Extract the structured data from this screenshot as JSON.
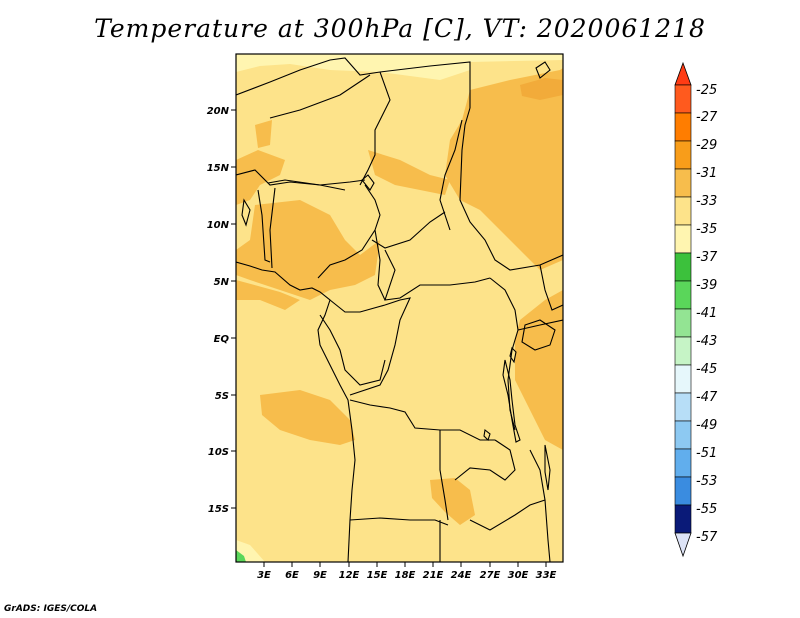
{
  "title": "Temperature at 300hPa [C], VT: 2020061218",
  "credit": "GrADS: IGES/COLA",
  "map": {
    "lat_ticks": [
      "20N",
      "15N",
      "10N",
      "5N",
      "EQ",
      "5S",
      "10S",
      "15S"
    ],
    "lon_ticks": [
      "3E",
      "6E",
      "9E",
      "12E",
      "15E",
      "18E",
      "21E",
      "24E",
      "27E",
      "30E",
      "33E"
    ],
    "field_colors": {
      "cool_-35_-33": "#fff5b0",
      "base_-33_-31": "#fde38a",
      "warm_-31_-29": "#f7bd4c",
      "green_-39_-37": "#5ad65a"
    }
  },
  "colorbar": {
    "labels": [
      "-25",
      "-27",
      "-29",
      "-31",
      "-33",
      "-35",
      "-37",
      "-39",
      "-41",
      "-43",
      "-45",
      "-47",
      "-49",
      "-51",
      "-53",
      "-55",
      "-57"
    ],
    "colors": [
      "#ff5a1e",
      "#ff7d00",
      "#f89d1a",
      "#f7bd4c",
      "#fde38a",
      "#fff5b0",
      "#3cc13c",
      "#5ad65a",
      "#93e493",
      "#c6f4c6",
      "#e6f7fb",
      "#b7def7",
      "#8dc9f2",
      "#61aeed",
      "#3a8ce0",
      "#1a66d1",
      "#0d3fb3",
      "#0a1a78",
      "#dde3f6"
    ]
  }
}
